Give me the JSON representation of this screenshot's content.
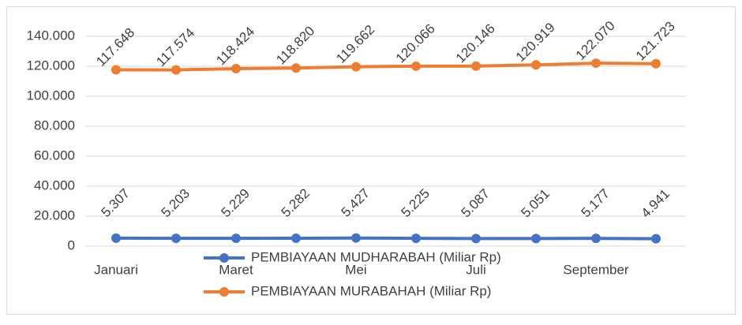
{
  "chart_data": {
    "type": "line",
    "categories": [
      "Januari",
      null,
      "Maret",
      null,
      "Mei",
      null,
      "Juli",
      null,
      "September",
      null
    ],
    "series": [
      {
        "name": "PEMBIAYAAN MUDHARABAH (Miliar Rp)",
        "color": "#4472c4",
        "values": [
          5307,
          5203,
          5229,
          5282,
          5427,
          5225,
          5087,
          5051,
          5177,
          4941
        ],
        "value_labels": [
          "5.307",
          "5.203",
          "5.229",
          "5.282",
          "5.427",
          "5.225",
          "5.087",
          "5.051",
          "5.177",
          "4.941"
        ]
      },
      {
        "name": "PEMBIAYAAN MURABAHAH (Miliar Rp)",
        "color": "#ed7d31",
        "values": [
          117648,
          117574,
          118424,
          118820,
          119662,
          120066,
          120146,
          120919,
          122070,
          121723
        ],
        "value_labels": [
          "117.648",
          "117.574",
          "118.424",
          "118.820",
          "119.662",
          "120.066",
          "120.146",
          "120.919",
          "122.070",
          "121.723"
        ]
      }
    ],
    "ylim": [
      0,
      140000
    ],
    "yticks": [
      0,
      {
        "value": 20000,
        "label": "20.000"
      },
      {
        "value": 40000,
        "label": "40.000"
      },
      {
        "value": 60000,
        "label": "60.000"
      },
      {
        "value": 80000,
        "label": "80.000"
      },
      {
        "value": 100000,
        "label": "100.000"
      },
      {
        "value": 120000,
        "label": "120.000"
      },
      {
        "value": 140000,
        "label": "140.000"
      }
    ],
    "grid": true
  }
}
